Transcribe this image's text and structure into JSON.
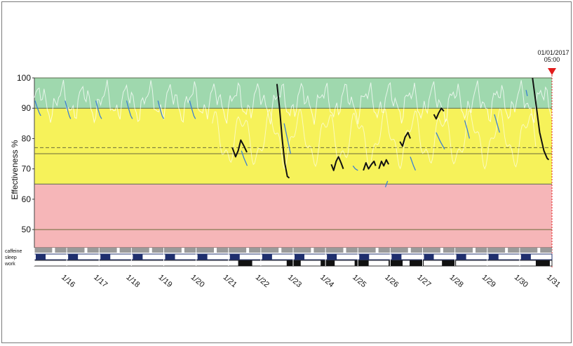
{
  "chart_data": {
    "type": "line",
    "ylabel": "Effectiveness %",
    "xlabel": "",
    "ylim": [
      44,
      100
    ],
    "yticks": [
      50,
      60,
      70,
      80,
      90,
      100
    ],
    "x_date_labels": [
      "1/16",
      "1/17",
      "1/18",
      "1/19",
      "1/20",
      "1/21",
      "1/22",
      "1/23",
      "1/24",
      "1/25",
      "1/26",
      "1/27",
      "1/28",
      "1/29",
      "1/30",
      "1/31"
    ],
    "x_range_days": [
      0,
      16
    ],
    "zones": [
      {
        "from": 90,
        "to": 100,
        "color": "#9fd8ae"
      },
      {
        "from": 65,
        "to": 90,
        "color": "#f6f25a"
      },
      {
        "from": 44,
        "to": 65,
        "color": "#f6b6b8"
      }
    ],
    "reference_lines": [
      {
        "value": 77,
        "style": "dashed"
      },
      {
        "value": 75,
        "style": "solid"
      },
      {
        "value": 50,
        "style": "solid"
      }
    ],
    "marker": {
      "date": "01/01/2017",
      "time": "05:00",
      "color": "#e21b1b"
    },
    "activity_rows": [
      "caffeine",
      "sleep",
      "work"
    ],
    "series": [
      {
        "kind": "blue_dip_segments",
        "color": "#3b7fd1",
        "segments": [
          [
            [
              0.02,
              92.5
            ],
            [
              0.08,
              90.5
            ],
            [
              0.15,
              88.5
            ],
            [
              0.2,
              87.5
            ]
          ],
          [
            [
              0.95,
              92.5
            ],
            [
              1.01,
              90.0
            ],
            [
              1.08,
              87.5
            ],
            [
              1.12,
              86.5
            ]
          ],
          [
            [
              1.9,
              92.5
            ],
            [
              1.96,
              90.0
            ],
            [
              2.03,
              87.5
            ],
            [
              2.08,
              86.5
            ]
          ],
          [
            [
              2.85,
              92.5
            ],
            [
              2.91,
              90.0
            ],
            [
              2.98,
              87.5
            ],
            [
              3.03,
              86.5
            ]
          ],
          [
            [
              3.82,
              92.5
            ],
            [
              3.88,
              90.0
            ],
            [
              3.95,
              87.5
            ],
            [
              4.0,
              86.5
            ]
          ],
          [
            [
              4.8,
              92.5
            ],
            [
              4.86,
              90.0
            ],
            [
              4.93,
              87.5
            ],
            [
              4.98,
              86.5
            ]
          ],
          [
            [
              6.4,
              76.0
            ],
            [
              6.48,
              73.5
            ],
            [
              6.58,
              71.0
            ]
          ],
          [
            [
              7.72,
              85.0
            ],
            [
              7.82,
              80.0
            ],
            [
              7.92,
              75.0
            ]
          ],
          [
            [
              9.85,
              71.0
            ],
            [
              9.92,
              70.0
            ],
            [
              10.0,
              69.5
            ]
          ],
          [
            [
              10.85,
              64.0
            ],
            [
              10.92,
              66.0
            ]
          ],
          [
            [
              11.62,
              74.0
            ],
            [
              11.72,
              71.0
            ],
            [
              11.78,
              69.5
            ]
          ],
          [
            [
              12.42,
              82.0
            ],
            [
              12.55,
              79.0
            ],
            [
              12.68,
              76.5
            ]
          ],
          [
            [
              13.3,
              86.0
            ],
            [
              13.38,
              83.0
            ],
            [
              13.45,
              80.0
            ]
          ],
          [
            [
              14.22,
              88.0
            ],
            [
              14.3,
              85.0
            ],
            [
              14.38,
              82.0
            ]
          ],
          [
            [
              15.2,
              96.0
            ],
            [
              15.24,
              94.0
            ]
          ]
        ]
      },
      {
        "kind": "black_segments",
        "color": "#111111",
        "segments": [
          [
            [
              6.12,
              77.0
            ],
            [
              6.22,
              74.0
            ],
            [
              6.3,
              76.0
            ],
            [
              6.38,
              79.5
            ],
            [
              6.48,
              77.5
            ],
            [
              6.57,
              75.5
            ]
          ],
          [
            [
              7.5,
              98.0
            ],
            [
              7.58,
              90.0
            ],
            [
              7.66,
              80.0
            ],
            [
              7.74,
              72.0
            ],
            [
              7.82,
              67.5
            ],
            [
              7.88,
              67.0
            ]
          ],
          [
            [
              9.18,
              71.5
            ],
            [
              9.25,
              69.5
            ],
            [
              9.33,
              72.5
            ],
            [
              9.4,
              74.0
            ],
            [
              9.48,
              72.0
            ],
            [
              9.55,
              70.0
            ]
          ],
          [
            [
              10.17,
              69.5
            ],
            [
              10.25,
              72.0
            ],
            [
              10.33,
              70.0
            ],
            [
              10.42,
              71.5
            ],
            [
              10.5,
              72.5
            ],
            [
              10.55,
              71.0
            ]
          ],
          [
            [
              10.65,
              70.0
            ],
            [
              10.73,
              72.5
            ],
            [
              10.8,
              71.0
            ],
            [
              10.88,
              73.0
            ],
            [
              10.95,
              71.5
            ]
          ],
          [
            [
              11.3,
              79.0
            ],
            [
              11.38,
              77.5
            ],
            [
              11.46,
              80.5
            ],
            [
              11.55,
              82.0
            ],
            [
              11.62,
              80.0
            ]
          ],
          [
            [
              12.35,
              88.0
            ],
            [
              12.42,
              86.5
            ],
            [
              12.5,
              88.5
            ],
            [
              12.58,
              90.0
            ],
            [
              12.66,
              89.0
            ]
          ],
          [
            [
              15.4,
              100.0
            ],
            [
              15.5,
              92.0
            ],
            [
              15.62,
              82.0
            ],
            [
              15.75,
              76.0
            ],
            [
              15.85,
              73.5
            ],
            [
              15.9,
              73.0
            ]
          ]
        ]
      }
    ]
  }
}
